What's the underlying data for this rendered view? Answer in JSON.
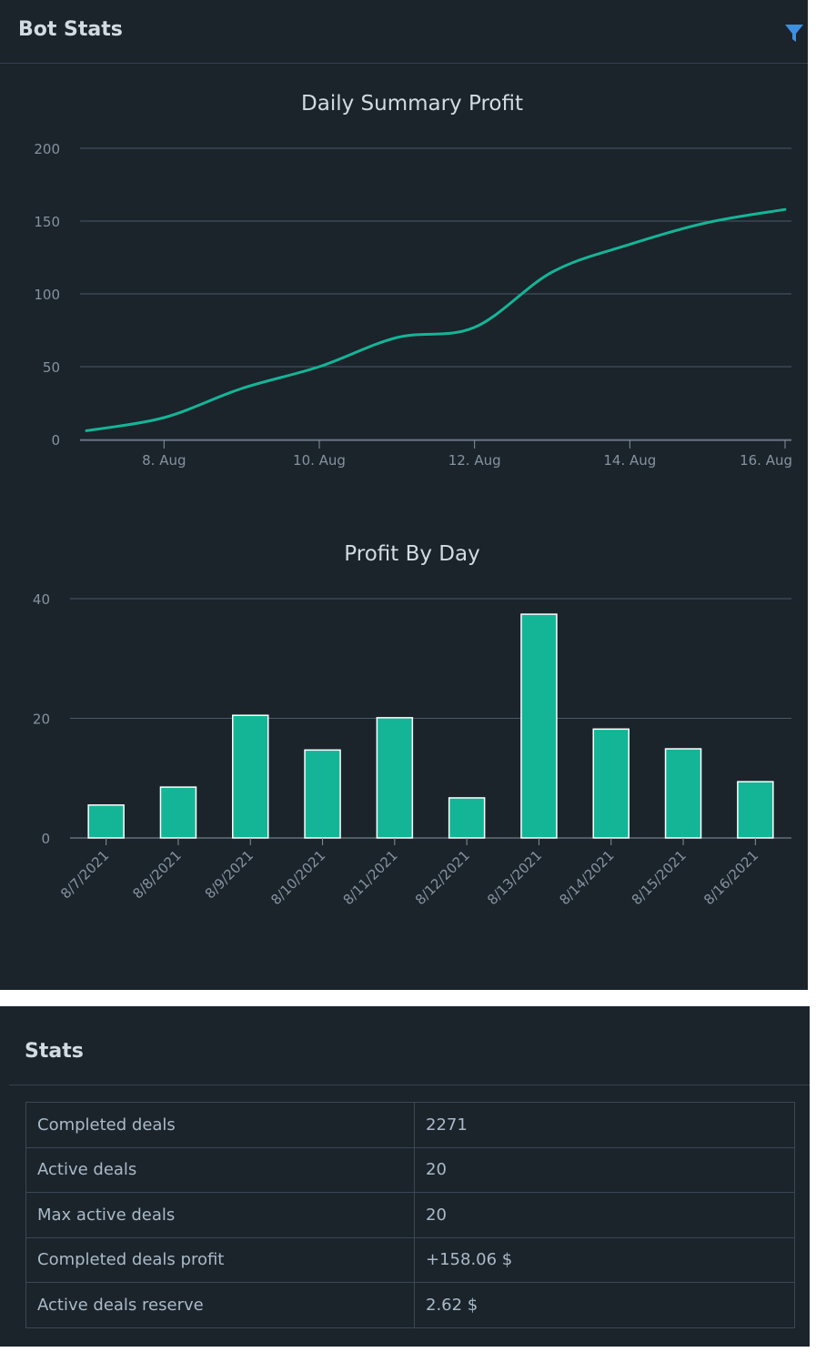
{
  "panel": {
    "title": "Bot Stats",
    "filter_icon": "filter-icon"
  },
  "colors": {
    "background": "#1b232b",
    "accent": "#14b597",
    "grid": "#4a5a68",
    "text": "#d3dbe2",
    "muted": "#8493a0"
  },
  "chart_data": [
    {
      "type": "line",
      "title": "Daily Summary Profit",
      "x": [
        "2021-08-07",
        "2021-08-08",
        "2021-08-09",
        "2021-08-10",
        "2021-08-11",
        "2021-08-12",
        "2021-08-13",
        "2021-08-14",
        "2021-08-15",
        "2021-08-16"
      ],
      "y": [
        6,
        15,
        35,
        50,
        70,
        77,
        115,
        134,
        149,
        158
      ],
      "x_ticks": [
        "8. Aug",
        "10. Aug",
        "12. Aug",
        "14. Aug",
        "16. Aug"
      ],
      "x_tick_dates": [
        "2021-08-08",
        "2021-08-10",
        "2021-08-12",
        "2021-08-14",
        "2021-08-16"
      ],
      "y_ticks": [
        "0",
        "50",
        "100",
        "150",
        "200"
      ],
      "ylim": [
        0,
        200
      ],
      "grid": true,
      "color": "#14b597"
    },
    {
      "type": "bar",
      "title": "Profit By Day",
      "categories": [
        "8/7/2021",
        "8/8/2021",
        "8/9/2021",
        "8/10/2021",
        "8/11/2021",
        "8/12/2021",
        "8/13/2021",
        "8/14/2021",
        "8/15/2021",
        "8/16/2021"
      ],
      "values": [
        5.5,
        8.5,
        20.5,
        14.7,
        20.1,
        6.7,
        37.4,
        18.2,
        14.9,
        9.4
      ],
      "y_ticks": [
        "0",
        "20",
        "40"
      ],
      "ylim": [
        0,
        40
      ],
      "grid": true,
      "color": "#14b597"
    }
  ],
  "stats": {
    "title": "Stats",
    "rows": [
      {
        "label": "Completed deals",
        "value": "2271"
      },
      {
        "label": "Active deals",
        "value": "20"
      },
      {
        "label": "Max active deals",
        "value": "20"
      },
      {
        "label": "Completed deals profit",
        "value": "+158.06 $"
      },
      {
        "label": "Active deals reserve",
        "value": "2.62 $"
      }
    ]
  }
}
